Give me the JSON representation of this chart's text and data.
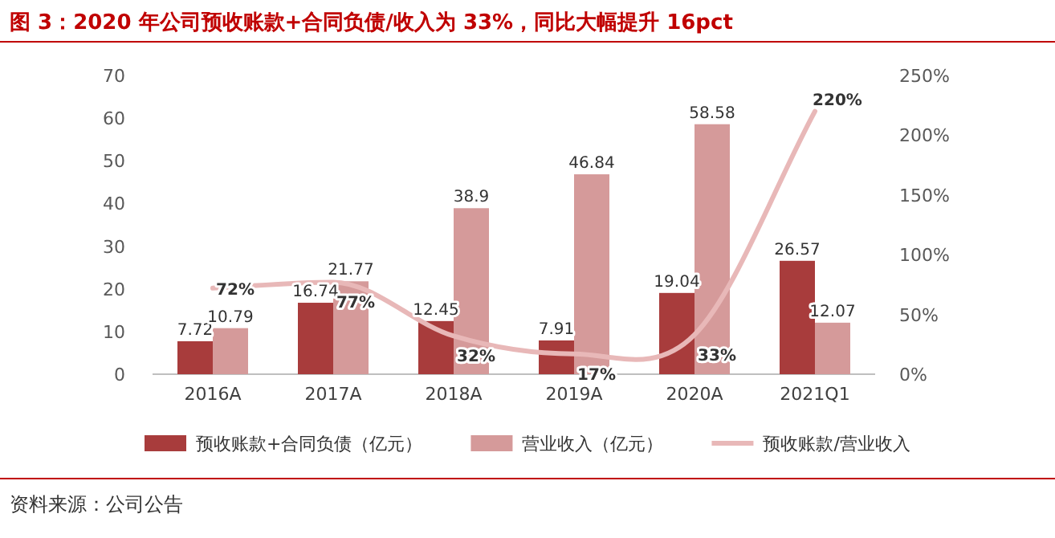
{
  "chart_data": {
    "type": "bar",
    "title": "图 3：2020 年公司预收账款+合同负债/收入为 33%，同比大幅提升 16pct",
    "categories": [
      "2016A",
      "2017A",
      "2018A",
      "2019A",
      "2020A",
      "2021Q1"
    ],
    "series": [
      {
        "name": "预收账款+合同负债（亿元）",
        "color": "#a83c3c",
        "values": [
          7.72,
          16.74,
          12.45,
          7.91,
          19.04,
          26.57
        ]
      },
      {
        "name": "营业收入（亿元）",
        "color": "#d59a9a",
        "values": [
          10.79,
          21.77,
          38.9,
          46.84,
          58.58,
          12.07
        ]
      },
      {
        "name": "预收账款/营业收入",
        "type": "line",
        "axis": "y2",
        "color": "#e8b8b8",
        "values": [
          72,
          77,
          32,
          17,
          33,
          220
        ],
        "value_labels": [
          "72%",
          "77%",
          "32%",
          "17%",
          "33%",
          "220%"
        ]
      }
    ],
    "ylim": [
      0,
      70
    ],
    "yticks": [
      0,
      10,
      20,
      30,
      40,
      50,
      60,
      70
    ],
    "y2lim": [
      0,
      250
    ],
    "y2ticks": [
      {
        "value": 0,
        "label": "0%"
      },
      {
        "value": 50,
        "label": "50%"
      },
      {
        "value": 100,
        "label": "100%"
      },
      {
        "value": 150,
        "label": "150%"
      },
      {
        "value": 200,
        "label": "200%"
      },
      {
        "value": 250,
        "label": "250%"
      }
    ],
    "data_labels": true,
    "legend": "bottom",
    "grid": false,
    "annotations": [
      "资料来源：公司公告"
    ]
  }
}
